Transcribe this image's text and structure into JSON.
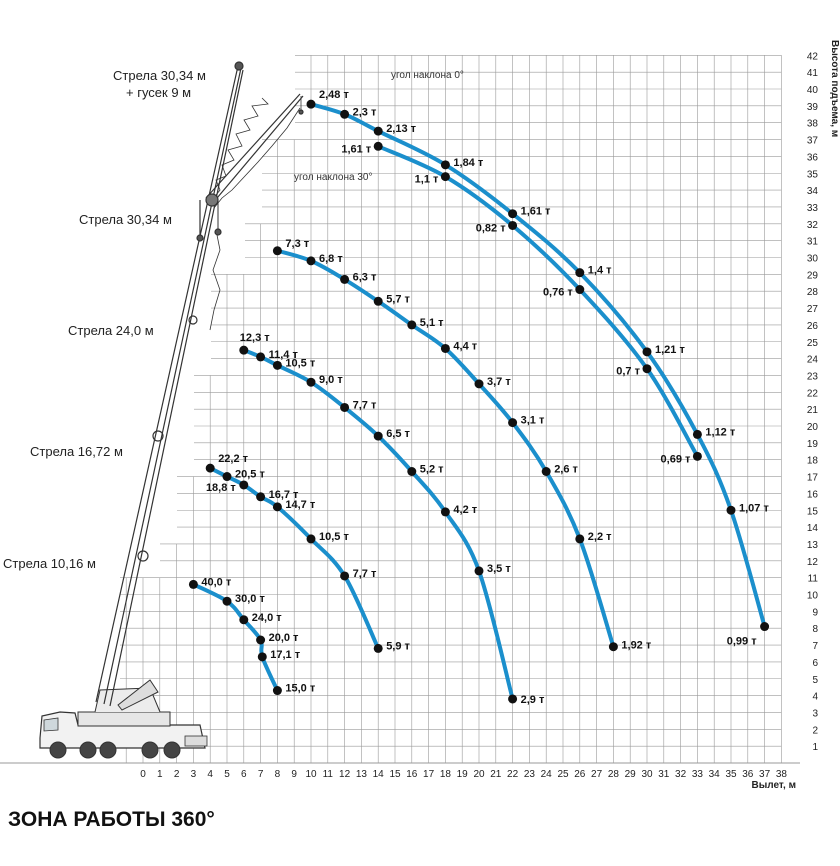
{
  "chart_data": {
    "type": "line",
    "title": "ЗОНА РАБОТЫ 360°",
    "xlabel": "Вылет, м",
    "ylabel": "Высота подъема, м",
    "x_ticks": [
      0,
      1,
      2,
      3,
      4,
      5,
      6,
      7,
      8,
      9,
      10,
      11,
      12,
      13,
      14,
      15,
      16,
      17,
      18,
      19,
      20,
      21,
      22,
      23,
      24,
      25,
      26,
      27,
      28,
      29,
      30,
      31,
      32,
      33,
      34,
      35,
      36,
      37,
      38
    ],
    "y_ticks": [
      1,
      2,
      3,
      4,
      5,
      6,
      7,
      8,
      9,
      10,
      11,
      12,
      13,
      14,
      15,
      16,
      17,
      18,
      19,
      20,
      21,
      22,
      23,
      24,
      25,
      26,
      27,
      28,
      29,
      30,
      31,
      32,
      33,
      34,
      35,
      36,
      37,
      38,
      39,
      40,
      41,
      42
    ],
    "xlim": [
      0,
      38
    ],
    "ylim": [
      0,
      42
    ],
    "grid": true,
    "colors": {
      "curve": "#1b8fcc",
      "point": "#111111",
      "grid": "#9a9a9a",
      "text": "#222222"
    },
    "boom_labels": [
      {
        "text": "Стрела 30,34 м",
        "sub": "+ гусек 9 м"
      },
      {
        "text": "Стрела 30,34 м"
      },
      {
        "text": "Стрела 24,0 м"
      },
      {
        "text": "Стрела 16,72 м"
      },
      {
        "text": "Стрела 10,16 м"
      }
    ],
    "annotations": [
      "угол наклона 0°",
      "угол наклона 30°"
    ],
    "series": [
      {
        "points": [
          {
            "x": 3,
            "y": 10.6,
            "label": "40,0 т"
          },
          {
            "x": 5,
            "y": 9.6,
            "label": "30,0 т"
          },
          {
            "x": 6,
            "y": 8.5,
            "label": "24,0 т"
          },
          {
            "x": 7,
            "y": 7.3,
            "label": "20,0 т"
          },
          {
            "x": 7.1,
            "y": 6.3,
            "label": "17,1 т"
          },
          {
            "x": 8,
            "y": 4.3,
            "label": "15,0 т"
          }
        ]
      },
      {
        "points": [
          {
            "x": 4,
            "y": 17.5,
            "label": "22,2 т"
          },
          {
            "x": 5,
            "y": 17.0,
            "label": "20,5 т"
          },
          {
            "x": 6,
            "y": 16.5,
            "label": "18,8 т"
          },
          {
            "x": 7,
            "y": 15.8,
            "label": "16,7 т"
          },
          {
            "x": 8,
            "y": 15.2,
            "label": "14,7 т"
          },
          {
            "x": 10,
            "y": 13.3,
            "label": "10,5 т"
          },
          {
            "x": 12,
            "y": 11.1,
            "label": "7,7 т"
          },
          {
            "x": 14,
            "y": 6.8,
            "label": "5,9 т"
          }
        ]
      },
      {
        "points": [
          {
            "x": 6,
            "y": 24.5,
            "label": "12,3 т"
          },
          {
            "x": 7,
            "y": 24.1,
            "label": "11,4 т"
          },
          {
            "x": 8,
            "y": 23.6,
            "label": "10,5 т"
          },
          {
            "x": 10,
            "y": 22.6,
            "label": "9,0 т"
          },
          {
            "x": 12,
            "y": 21.1,
            "label": "7,7 т"
          },
          {
            "x": 14,
            "y": 19.4,
            "label": "6,5 т"
          },
          {
            "x": 16,
            "y": 17.3,
            "label": "5,2 т"
          },
          {
            "x": 18,
            "y": 14.9,
            "label": "4,2 т"
          },
          {
            "x": 20,
            "y": 11.4,
            "label": "3,5 т"
          },
          {
            "x": 22,
            "y": 3.8,
            "label": "2,9 т"
          }
        ]
      },
      {
        "points": [
          {
            "x": 8,
            "y": 30.4,
            "label": "7,3 т"
          },
          {
            "x": 10,
            "y": 29.8,
            "label": "6,8 т"
          },
          {
            "x": 12,
            "y": 28.7,
            "label": "6,3 т"
          },
          {
            "x": 14,
            "y": 27.4,
            "label": "5,7 т"
          },
          {
            "x": 16,
            "y": 26.0,
            "label": "5,1 т"
          },
          {
            "x": 18,
            "y": 24.6,
            "label": "4,4 т"
          },
          {
            "x": 20,
            "y": 22.5,
            "label": "3,7 т"
          },
          {
            "x": 22,
            "y": 20.2,
            "label": "3,1 т"
          },
          {
            "x": 24,
            "y": 17.3,
            "label": "2,6 т"
          },
          {
            "x": 26,
            "y": 13.3,
            "label": "2,2 т"
          },
          {
            "x": 28,
            "y": 6.9,
            "label": "1,92 т"
          }
        ]
      },
      {
        "points": [
          {
            "x": 10,
            "y": 39.1,
            "label": "2,48 т"
          },
          {
            "x": 12,
            "y": 38.5,
            "label": "2,3 т"
          },
          {
            "x": 14,
            "y": 37.5,
            "label": "2,13 т"
          },
          {
            "x": 18,
            "y": 35.5,
            "label": "1,84 т"
          },
          {
            "x": 22,
            "y": 32.6,
            "label": "1,61 т"
          },
          {
            "x": 26,
            "y": 29.1,
            "label": "1,4 т"
          },
          {
            "x": 30,
            "y": 24.4,
            "label": "1,21 т"
          },
          {
            "x": 33,
            "y": 19.5,
            "label": "1,12 т"
          },
          {
            "x": 35,
            "y": 15.0,
            "label": "1,07 т"
          },
          {
            "x": 37,
            "y": 8.1,
            "label": "0,99 т"
          }
        ]
      },
      {
        "points": [
          {
            "x": 14,
            "y": 36.6,
            "label": "1,61 т"
          },
          {
            "x": 18,
            "y": 34.8,
            "label": "1,1 т"
          },
          {
            "x": 22,
            "y": 31.9,
            "label": "0,82 т"
          },
          {
            "x": 26,
            "y": 28.1,
            "label": "0,76 т"
          },
          {
            "x": 30,
            "y": 23.4,
            "label": "0,7 т"
          },
          {
            "x": 33,
            "y": 18.2,
            "label": "0,69 т"
          }
        ]
      }
    ]
  }
}
